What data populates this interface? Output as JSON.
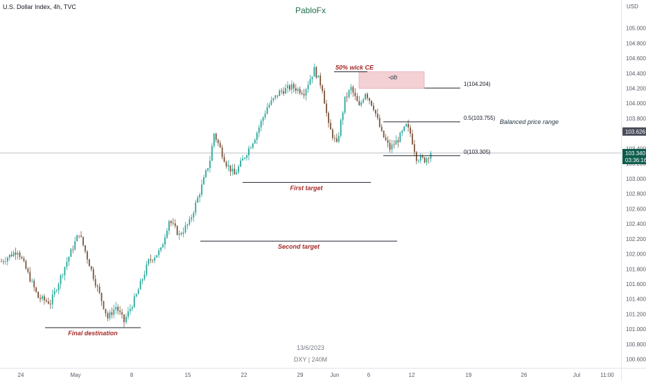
{
  "header": {
    "symbol_title": "U.S. Dollar Index, 4h, TVC",
    "author": "PabloFx"
  },
  "footer": {
    "date": "13/6/2023",
    "symbol_timeframe": "DXY | 240M"
  },
  "chart_data": {
    "type": "candlestick",
    "y_unit": "USD",
    "ylim": [
      100.56,
      105.3
    ],
    "y_ticks": [
      "105.000",
      "104.800",
      "104.600",
      "104.400",
      "104.200",
      "104.000",
      "103.800",
      "103.400",
      "103.200",
      "103.000",
      "102.800",
      "102.600",
      "102.400",
      "102.200",
      "102.000",
      "101.800",
      "101.600",
      "101.400",
      "101.200",
      "101.000",
      "100.800",
      "100.600"
    ],
    "x_ticks": [
      "24",
      "May",
      "8",
      "15",
      "22",
      "29",
      "Jun",
      "6",
      "12",
      "19",
      "26",
      "Jul",
      "11:00"
    ],
    "grid": false,
    "colors": {
      "up": "#26a69a",
      "down": "#7a5238",
      "last_price": "#0d5c4c",
      "prev_close": "#4a4e5a"
    },
    "price_tags": [
      {
        "label": "103.626",
        "value": 103.626,
        "kind": "prev_close"
      },
      {
        "label": "103.340",
        "value": 103.34,
        "kind": "last_price"
      }
    ],
    "countdown": "03:36:16",
    "path": [
      {
        "bar": 0,
        "price": 101.9
      },
      {
        "bar": 8,
        "price": 102.05
      },
      {
        "bar": 18,
        "price": 101.42
      },
      {
        "bar": 24,
        "price": 101.35
      },
      {
        "bar": 32,
        "price": 101.9
      },
      {
        "bar": 38,
        "price": 102.28
      },
      {
        "bar": 46,
        "price": 101.62
      },
      {
        "bar": 52,
        "price": 101.15
      },
      {
        "bar": 56,
        "price": 101.3
      },
      {
        "bar": 60,
        "price": 101.1
      },
      {
        "bar": 66,
        "price": 101.45
      },
      {
        "bar": 72,
        "price": 101.9
      },
      {
        "bar": 78,
        "price": 102.05
      },
      {
        "bar": 82,
        "price": 102.45
      },
      {
        "bar": 87,
        "price": 102.25
      },
      {
        "bar": 92,
        "price": 102.42
      },
      {
        "bar": 98,
        "price": 102.9
      },
      {
        "bar": 102,
        "price": 103.25
      },
      {
        "bar": 104,
        "price": 103.6
      },
      {
        "bar": 110,
        "price": 103.2
      },
      {
        "bar": 114,
        "price": 103.05
      },
      {
        "bar": 118,
        "price": 103.25
      },
      {
        "bar": 124,
        "price": 103.55
      },
      {
        "bar": 130,
        "price": 103.95
      },
      {
        "bar": 136,
        "price": 104.15
      },
      {
        "bar": 142,
        "price": 104.22
      },
      {
        "bar": 148,
        "price": 104.15
      },
      {
        "bar": 153,
        "price": 104.45
      },
      {
        "bar": 157,
        "price": 104.2
      },
      {
        "bar": 160,
        "price": 103.7
      },
      {
        "bar": 164,
        "price": 103.45
      },
      {
        "bar": 168,
        "price": 104.05
      },
      {
        "bar": 171,
        "price": 104.2
      },
      {
        "bar": 175,
        "price": 103.95
      },
      {
        "bar": 178,
        "price": 104.15
      },
      {
        "bar": 182,
        "price": 103.95
      },
      {
        "bar": 186,
        "price": 103.6
      },
      {
        "bar": 190,
        "price": 103.4
      },
      {
        "bar": 194,
        "price": 103.52
      },
      {
        "bar": 198,
        "price": 103.7
      },
      {
        "bar": 200,
        "price": 103.6
      },
      {
        "bar": 203,
        "price": 103.28
      },
      {
        "bar": 207,
        "price": 103.25
      },
      {
        "bar": 210,
        "price": 103.34
      }
    ],
    "levels": [
      {
        "label": "1(104.204)",
        "value": 104.204
      },
      {
        "label": "0.5(103.755)",
        "value": 103.755
      },
      {
        "label": "0(103.305)",
        "value": 103.305
      }
    ],
    "targets": [
      {
        "label": "First target",
        "value": 102.95
      },
      {
        "label": "Second target",
        "value": 102.17
      },
      {
        "label": "Final destination",
        "value": 101.02
      }
    ],
    "ob_zone": {
      "label": "-ob",
      "top": 104.42,
      "bottom": 104.2
    },
    "wick_ce": {
      "label": "50% wick CE",
      "value": 104.42
    },
    "balanced_range": {
      "label": "Balanced price range"
    }
  }
}
